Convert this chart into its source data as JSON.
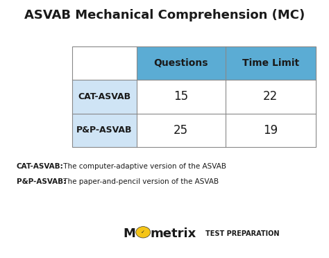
{
  "title": "ASVAB Mechanical Comprehension (MC)",
  "title_fontsize": 13,
  "background_color": "#ffffff",
  "header_bg_color": "#5bacd4",
  "row_label_bg_color": "#cfe4f5",
  "border_color": "#888888",
  "headers": [
    "Questions",
    "Time Limit"
  ],
  "row_labels": [
    "CAT-ASVAB",
    "P&P-ASVAB"
  ],
  "data": [
    [
      15,
      22
    ],
    [
      25,
      19
    ]
  ],
  "note1_bold": "CAT-ASVAB:",
  "note1_rest": " The computer-adaptive version of the ASVAB",
  "note2_bold": "P&P-ASVAB:",
  "note2_rest": " The paper-and-pencil version of the ASVAB"
}
